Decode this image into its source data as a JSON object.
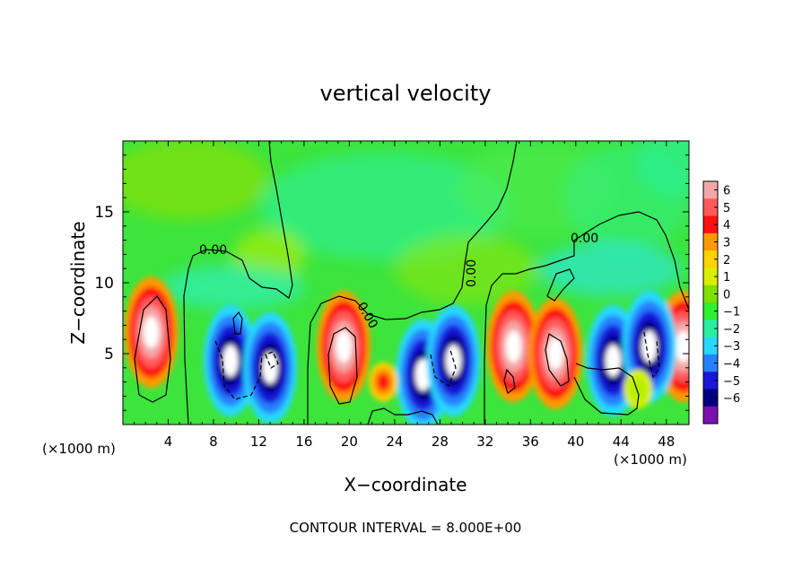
{
  "chart_data": {
    "type": "heatmap",
    "title": "vertical velocity",
    "xlabel": "X−coordinate",
    "ylabel": "Z−coordinate",
    "x_unit_label": "(×1000 m)",
    "x_unit_label_right": "(×1000 m)",
    "xlim": [
      0,
      50
    ],
    "ylim": [
      0,
      20
    ],
    "x_ticks": [
      4,
      8,
      12,
      16,
      20,
      24,
      28,
      32,
      36,
      40,
      44,
      48
    ],
    "y_ticks": [
      5,
      10,
      15
    ],
    "contour_label": "0.00",
    "footer": "CONTOUR INTERVAL = 8.000E+00",
    "colorbar": {
      "levels": [
        "6",
        "5",
        "4",
        "3",
        "2",
        "1",
        "0",
        "−1",
        "−2",
        "−3",
        "−4",
        "−5",
        "−6"
      ],
      "colors": [
        "#f4a6a6",
        "#ff5a5a",
        "#ff1010",
        "#ff9a00",
        "#ffd200",
        "#d8f000",
        "#7fe000",
        "#30ee30",
        "#28f0a0",
        "#28d8ff",
        "#2880ff",
        "#1818d8",
        "#000080",
        "#7a10b0"
      ]
    },
    "cells": [
      {
        "x": 2.5,
        "z": 6.5,
        "v": 6
      },
      {
        "x": 19.5,
        "z": 5.5,
        "v": 6
      },
      {
        "x": 34.5,
        "z": 5.5,
        "v": 6
      },
      {
        "x": 38.2,
        "z": 5.0,
        "v": 6
      },
      {
        "x": 49.5,
        "z": 5.5,
        "v": 6
      },
      {
        "x": 9.5,
        "z": 4.5,
        "v": -6
      },
      {
        "x": 13.0,
        "z": 4.0,
        "v": -6
      },
      {
        "x": 26.5,
        "z": 3.5,
        "v": -6
      },
      {
        "x": 29.2,
        "z": 4.5,
        "v": -6
      },
      {
        "x": 43.3,
        "z": 4.5,
        "v": -6
      },
      {
        "x": 46.5,
        "z": 5.5,
        "v": -6
      },
      {
        "x": 23.0,
        "z": 3.0,
        "v": 4
      },
      {
        "x": 45.5,
        "z": 2.5,
        "v": 1
      }
    ]
  }
}
